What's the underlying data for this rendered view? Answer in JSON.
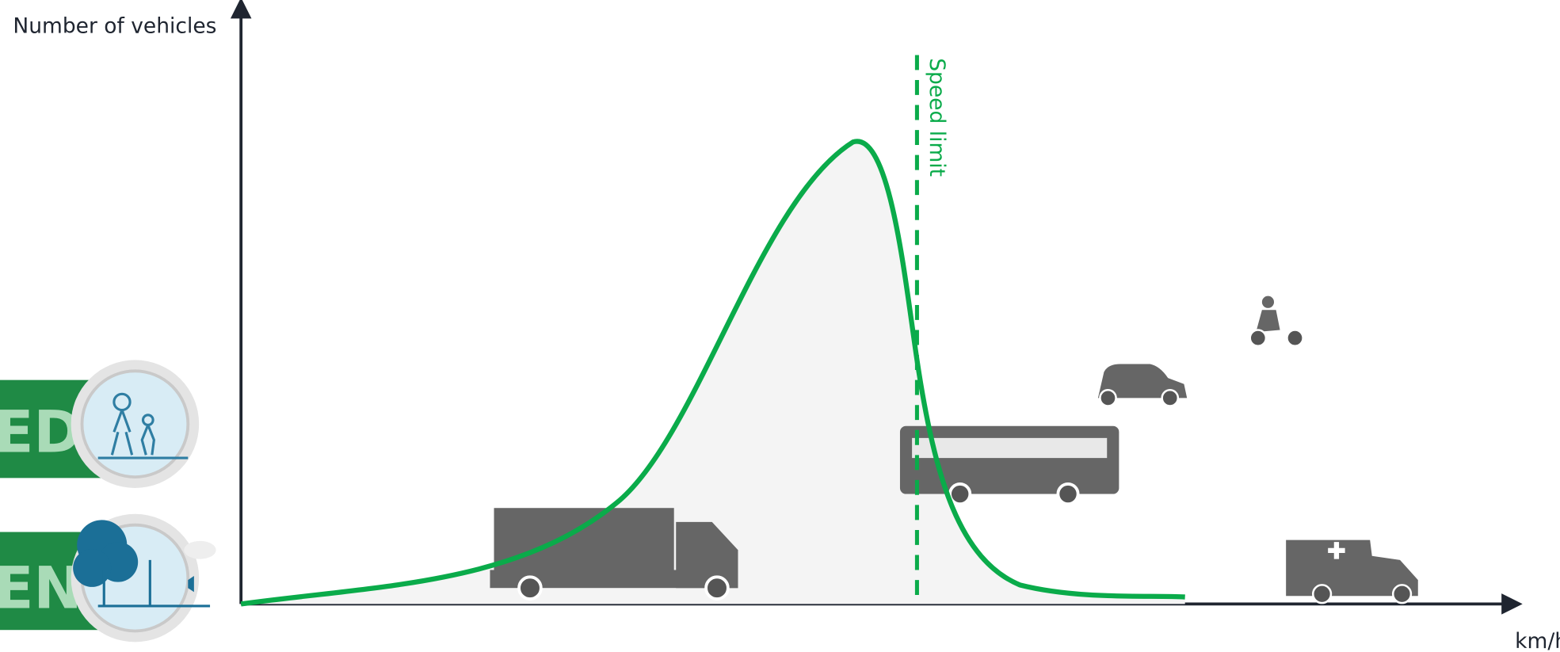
{
  "axes": {
    "y_label": "Number of vehicles",
    "x_label": "km/h"
  },
  "annotations": {
    "speed_limit": "Speed limit"
  },
  "side_panels": [
    {
      "label": "ED"
    },
    {
      "label": "ENT"
    }
  ]
}
